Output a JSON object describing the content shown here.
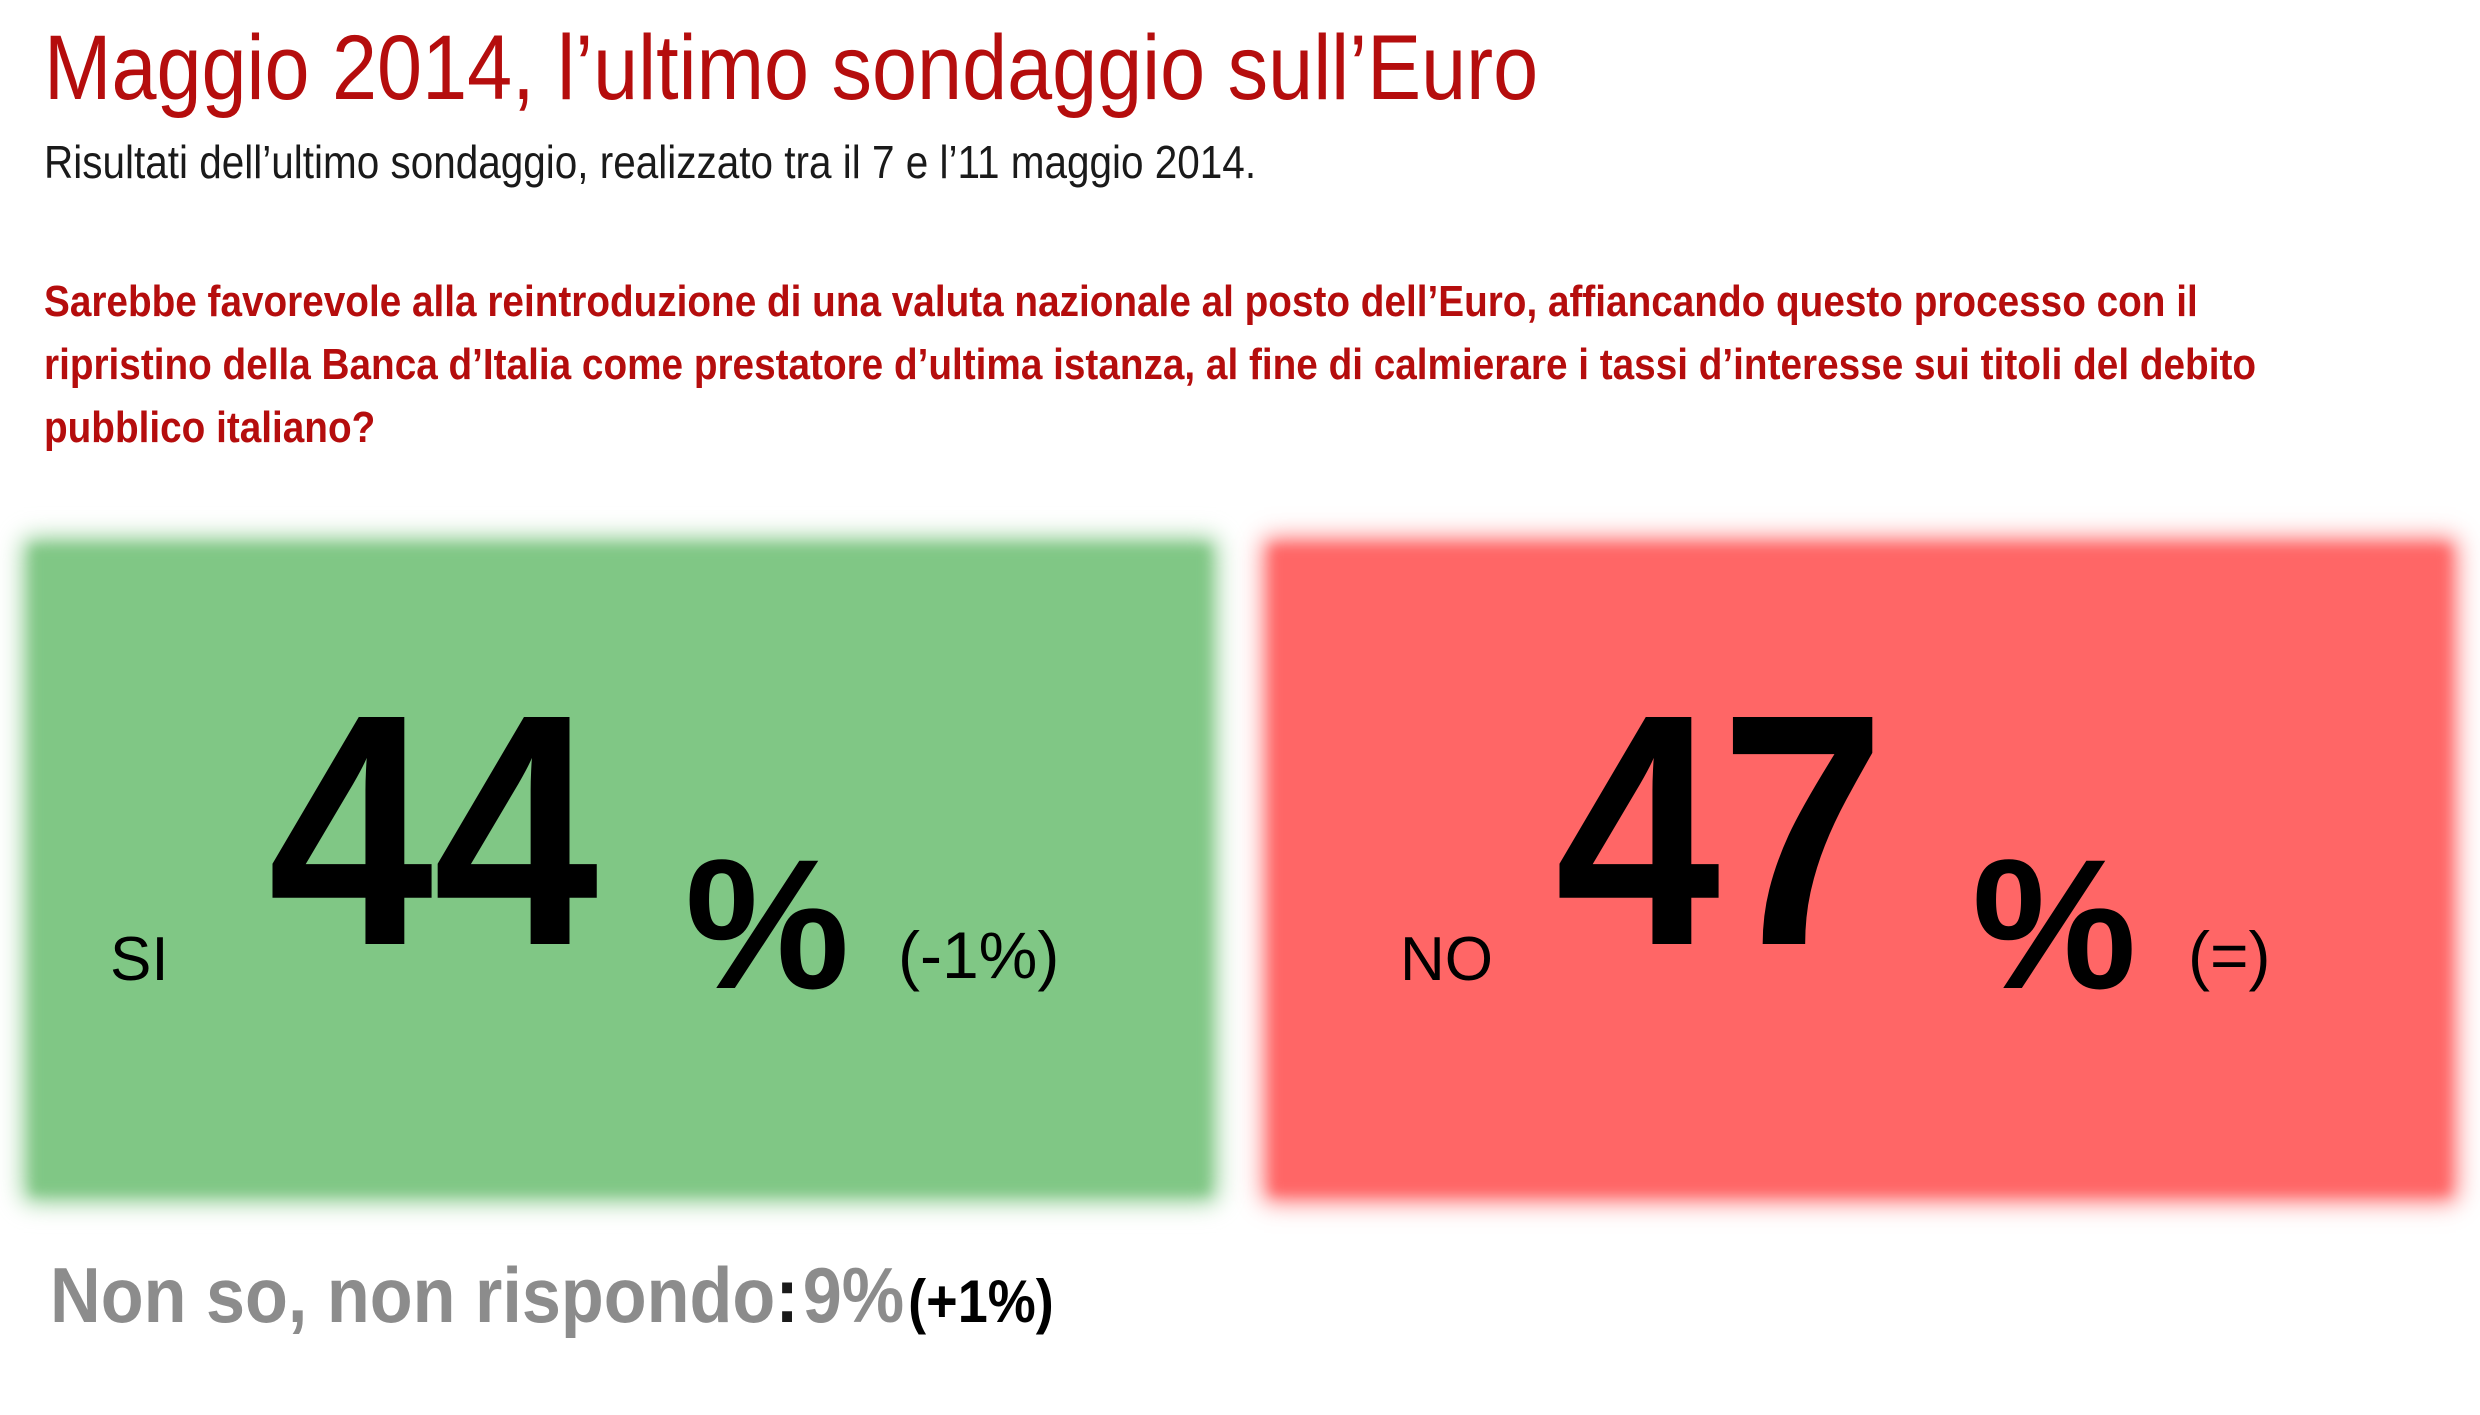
{
  "header": {
    "title": "Maggio 2014, l’ultimo sondaggio sull’Euro",
    "subtitle": "Risultati dell’ultimo sondaggio, realizzato tra il 7 e l’11 maggio 2014."
  },
  "question": "Sarebbe favorevole alla reintroduzione di una valuta nazionale al posto dell’Euro, affiancando questo processo con il ripristino della Banca d’Italia come prestatore d’ultima istanza, al fine di calmierare i tassi d’interesse sui titoli del debito pubblico italiano?",
  "results": {
    "yes": {
      "label": "SI",
      "value": "44",
      "percent_sign": "%",
      "change": "(-1%)",
      "color": "#80c785"
    },
    "no": {
      "label": "NO",
      "value": "47",
      "percent_sign": "%",
      "change": "(=)",
      "color": "#ff6666"
    },
    "undecided": {
      "label": "Non so, non rispondo",
      "colon": ":",
      "value": "9%",
      "change": "(+1%)"
    }
  },
  "colors": {
    "title": "#b50d0d",
    "undecided_text": "#8c8c8c"
  }
}
